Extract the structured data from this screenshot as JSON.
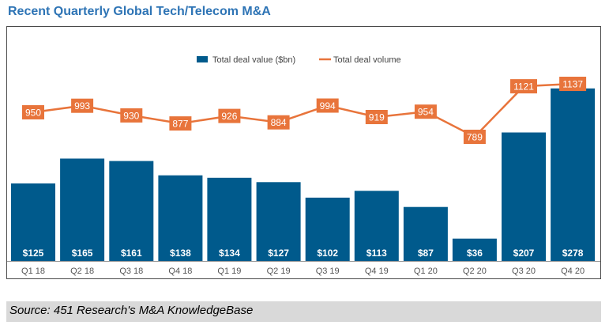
{
  "title": "Recent Quarterly Global Tech/Telecom M&A",
  "source": "Source: 451 Research's M&A KnowledgeBase",
  "colors": {
    "bar": "#005A8C",
    "line": "#E8743B",
    "title": "#2E74B5"
  },
  "chart_data": {
    "type": "bar",
    "title": "",
    "xlabel": "",
    "ylabel": "",
    "legend_position": "top-center",
    "categories": [
      "Q1 18",
      "Q2 18",
      "Q3 18",
      "Q4 18",
      "Q1 19",
      "Q2 19",
      "Q3 19",
      "Q4 19",
      "Q1 20",
      "Q2 20",
      "Q3 20",
      "Q4 20"
    ],
    "series": [
      {
        "name": "Total deal value ($bn)",
        "type": "bar",
        "values": [
          125,
          165,
          161,
          138,
          134,
          127,
          102,
          113,
          87,
          36,
          207,
          278
        ],
        "labels": [
          "$125",
          "$165",
          "$161",
          "$138",
          "$134",
          "$127",
          "$102",
          "$113",
          "$87",
          "$36",
          "$207",
          "$278"
        ]
      },
      {
        "name": "Total deal volume",
        "type": "line",
        "values": [
          950,
          993,
          930,
          877,
          926,
          884,
          994,
          919,
          954,
          789,
          1121,
          1137
        ],
        "labels": [
          "950",
          "993",
          "930",
          "877",
          "926",
          "884",
          "994",
          "919",
          "954",
          "789",
          "1121",
          "1137"
        ]
      }
    ]
  }
}
